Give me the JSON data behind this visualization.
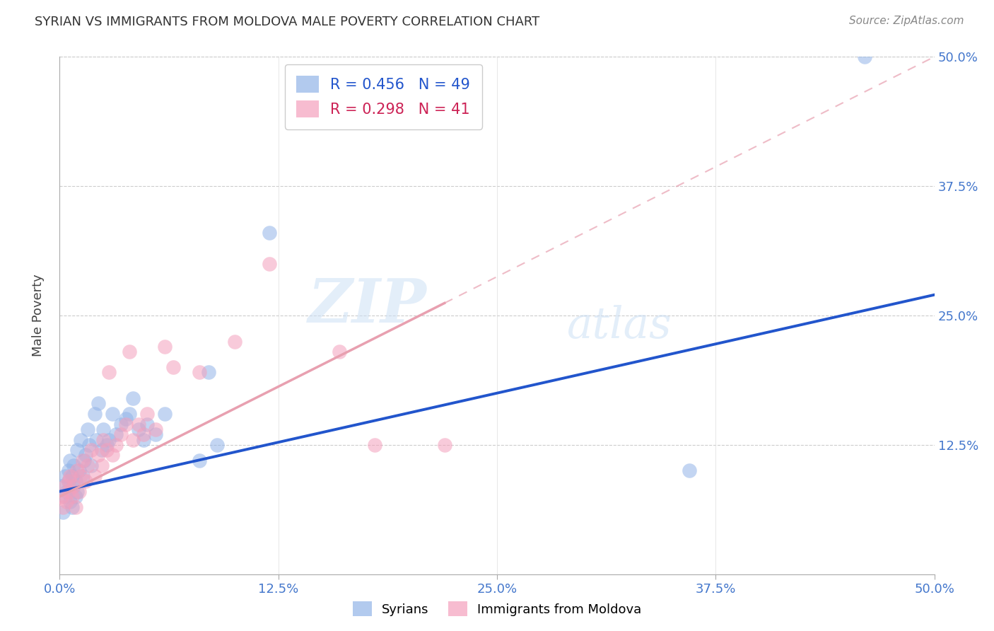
{
  "title": "SYRIAN VS IMMIGRANTS FROM MOLDOVA MALE POVERTY CORRELATION CHART",
  "source": "Source: ZipAtlas.com",
  "ylabel": "Male Poverty",
  "xlim": [
    0.0,
    0.5
  ],
  "ylim": [
    0.0,
    0.5
  ],
  "xtick_labels": [
    "0.0%",
    "",
    "12.5%",
    "",
    "25.0%",
    "",
    "37.5%",
    "",
    "50.0%"
  ],
  "xtick_positions": [
    0.0,
    0.0625,
    0.125,
    0.1875,
    0.25,
    0.3125,
    0.375,
    0.4375,
    0.5
  ],
  "ytick_labels_right": [
    "12.5%",
    "25.0%",
    "37.5%",
    "50.0%"
  ],
  "ytick_positions": [
    0.125,
    0.25,
    0.375,
    0.5
  ],
  "syrian_color": "#92B4E8",
  "moldova_color": "#F4A0BC",
  "syrian_line_color": "#2255CC",
  "moldova_line_color": "#E8A0B0",
  "syrian_R": 0.456,
  "syrian_N": 49,
  "moldova_R": 0.298,
  "moldova_N": 41,
  "watermark_zip": "ZIP",
  "watermark_atlas": "atlas",
  "syrian_scatter_x": [
    0.001,
    0.002,
    0.003,
    0.003,
    0.004,
    0.005,
    0.005,
    0.006,
    0.006,
    0.007,
    0.007,
    0.008,
    0.008,
    0.009,
    0.009,
    0.01,
    0.01,
    0.011,
    0.012,
    0.013,
    0.014,
    0.015,
    0.016,
    0.017,
    0.018,
    0.02,
    0.021,
    0.022,
    0.024,
    0.025,
    0.027,
    0.028,
    0.03,
    0.032,
    0.035,
    0.038,
    0.04,
    0.042,
    0.045,
    0.048,
    0.05,
    0.055,
    0.06,
    0.08,
    0.085,
    0.09,
    0.12,
    0.36,
    0.46
  ],
  "syrian_scatter_y": [
    0.085,
    0.06,
    0.095,
    0.075,
    0.08,
    0.1,
    0.09,
    0.07,
    0.11,
    0.065,
    0.095,
    0.085,
    0.105,
    0.075,
    0.09,
    0.12,
    0.08,
    0.1,
    0.13,
    0.095,
    0.11,
    0.115,
    0.14,
    0.125,
    0.105,
    0.155,
    0.13,
    0.165,
    0.12,
    0.14,
    0.125,
    0.13,
    0.155,
    0.135,
    0.145,
    0.15,
    0.155,
    0.17,
    0.14,
    0.13,
    0.145,
    0.135,
    0.155,
    0.11,
    0.195,
    0.125,
    0.33,
    0.1,
    0.5
  ],
  "moldova_scatter_x": [
    0.001,
    0.002,
    0.003,
    0.004,
    0.005,
    0.005,
    0.006,
    0.007,
    0.008,
    0.009,
    0.01,
    0.011,
    0.012,
    0.013,
    0.015,
    0.016,
    0.018,
    0.02,
    0.022,
    0.024,
    0.025,
    0.027,
    0.028,
    0.03,
    0.032,
    0.035,
    0.038,
    0.04,
    0.042,
    0.045,
    0.048,
    0.05,
    0.055,
    0.06,
    0.065,
    0.08,
    0.1,
    0.12,
    0.16,
    0.18,
    0.22
  ],
  "moldova_scatter_y": [
    0.075,
    0.065,
    0.085,
    0.07,
    0.09,
    0.08,
    0.095,
    0.075,
    0.085,
    0.065,
    0.1,
    0.08,
    0.095,
    0.11,
    0.09,
    0.105,
    0.12,
    0.095,
    0.115,
    0.105,
    0.13,
    0.12,
    0.195,
    0.115,
    0.125,
    0.135,
    0.145,
    0.215,
    0.13,
    0.145,
    0.135,
    0.155,
    0.14,
    0.22,
    0.2,
    0.195,
    0.225,
    0.3,
    0.215,
    0.125,
    0.125
  ],
  "syrian_line_x": [
    0.0,
    0.5
  ],
  "syrian_line_y": [
    0.08,
    0.27
  ],
  "moldova_line_x": [
    0.0,
    0.5
  ],
  "moldova_line_y": [
    0.075,
    0.5
  ]
}
